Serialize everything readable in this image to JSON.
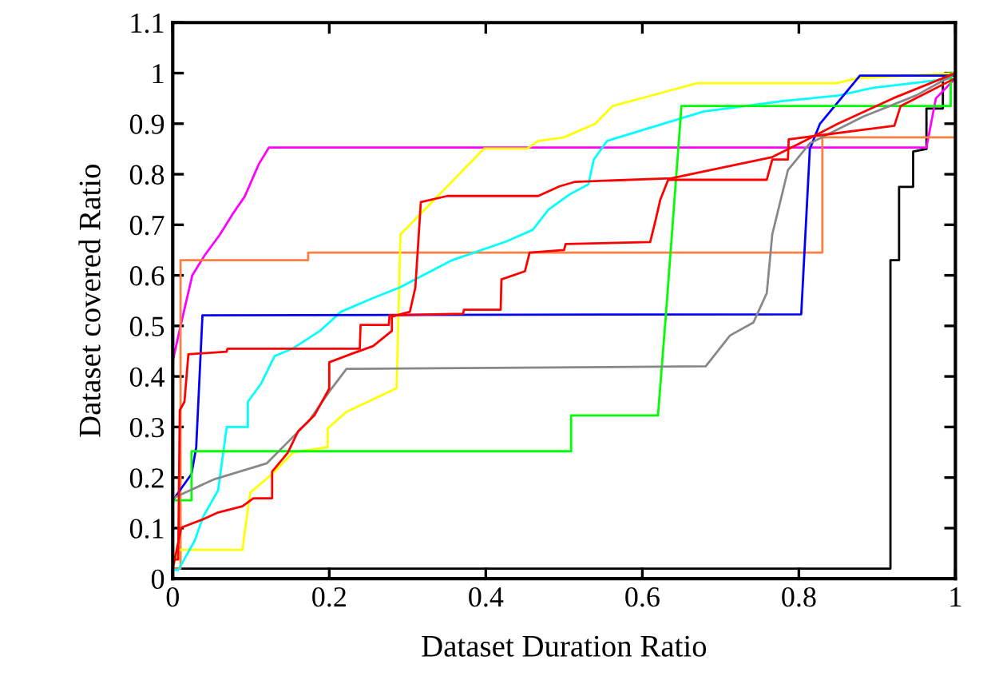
{
  "chart_data": {
    "type": "line",
    "xlabel": "Dataset Duration Ratio",
    "ylabel": "Dataset covered Ratio",
    "xlim": [
      0,
      1
    ],
    "ylim": [
      0,
      1.1
    ],
    "xticks": [
      0,
      0.2,
      0.4,
      0.6,
      0.8,
      1
    ],
    "yticks": [
      0,
      0.1,
      0.2,
      0.3,
      0.4,
      0.5,
      0.6,
      0.7,
      0.8,
      0.9,
      1,
      1.1
    ],
    "grid": false,
    "line_style": "solid",
    "marker": "none",
    "series": [
      {
        "color": "#000000",
        "x": [
          0,
          0.917,
          0.917,
          0.928,
          0.928,
          0.946,
          0.946,
          0.963,
          0.963,
          0.984,
          0.984,
          1
        ],
        "values": [
          0.02,
          0.02,
          0.63,
          0.63,
          0.775,
          0.775,
          0.845,
          0.85,
          0.93,
          0.93,
          0.99,
          1
        ]
      },
      {
        "color": "#ff00ff",
        "x": [
          0,
          0.01,
          0.025,
          0.041,
          0.06,
          0.076,
          0.092,
          0.11,
          0.123,
          0.963,
          0.975,
          1
        ],
        "values": [
          0.43,
          0.5,
          0.6,
          0.64,
          0.68,
          0.72,
          0.756,
          0.82,
          0.853,
          0.853,
          0.95,
          0.99
        ]
      },
      {
        "color": "#ff7f3f",
        "x": [
          0,
          0.01,
          0.01,
          0.173,
          0.173,
          0.83,
          0.83,
          1,
          1
        ],
        "values": [
          0.02,
          0.02,
          0.63,
          0.63,
          0.645,
          0.645,
          0.873,
          0.873,
          1
        ]
      },
      {
        "color": "#ffff00",
        "x": [
          0,
          0.007,
          0.089,
          0.099,
          0.127,
          0.154,
          0.198,
          0.198,
          0.222,
          0.255,
          0.286,
          0.291,
          0.398,
          0.453,
          0.467,
          0.5,
          0.54,
          0.562,
          0.61,
          0.67,
          0.848,
          0.875,
          1
        ],
        "values": [
          0.02,
          0.057,
          0.057,
          0.17,
          0.207,
          0.25,
          0.26,
          0.297,
          0.33,
          0.354,
          0.377,
          0.681,
          0.851,
          0.851,
          0.866,
          0.873,
          0.9,
          0.935,
          0.955,
          0.98,
          0.98,
          0.99,
          1
        ]
      },
      {
        "color": "#00ffff",
        "x": [
          0,
          0.007,
          0.028,
          0.039,
          0.058,
          0.069,
          0.096,
          0.096,
          0.113,
          0.13,
          0.153,
          0.188,
          0.215,
          0.256,
          0.29,
          0.357,
          0.426,
          0.46,
          0.48,
          0.507,
          0.531,
          0.538,
          0.555,
          0.61,
          0.678,
          0.78,
          0.848,
          0.895,
          0.984,
          1
        ],
        "values": [
          0.017,
          0.017,
          0.075,
          0.123,
          0.175,
          0.3,
          0.3,
          0.35,
          0.386,
          0.44,
          0.455,
          0.49,
          0.528,
          0.555,
          0.576,
          0.63,
          0.667,
          0.69,
          0.73,
          0.76,
          0.78,
          0.829,
          0.866,
          0.892,
          0.924,
          0.945,
          0.955,
          0.971,
          0.987,
          0.99
        ]
      },
      {
        "color": "#0000ff",
        "x": [
          0,
          0.024,
          0.03,
          0.038,
          0.803,
          0.814,
          0.827,
          0.878,
          1
        ],
        "values": [
          0.155,
          0.207,
          0.26,
          0.521,
          0.523,
          0.85,
          0.9,
          0.995,
          0.995
        ]
      },
      {
        "color": "#00ff00",
        "x": [
          0,
          0.024,
          0.024,
          0.509,
          0.509,
          0.62,
          0.63,
          0.65,
          0.994,
          0.994
        ],
        "values": [
          0.155,
          0.155,
          0.252,
          0.252,
          0.323,
          0.323,
          0.52,
          0.935,
          0.935,
          1
        ]
      },
      {
        "color": "#888888",
        "x": [
          0,
          0.052,
          0.12,
          0.147,
          0.174,
          0.2,
          0.222,
          0.681,
          0.712,
          0.742,
          0.759,
          0.766,
          0.786,
          0.814,
          0.882,
          0.95,
          0.99,
          1
        ],
        "values": [
          0.159,
          0.196,
          0.228,
          0.27,
          0.312,
          0.37,
          0.415,
          0.42,
          0.481,
          0.507,
          0.565,
          0.681,
          0.808,
          0.861,
          0.914,
          0.956,
          0.99,
          1
        ]
      },
      {
        "color": "#ff0000",
        "x": [
          0,
          0.011,
          0.038,
          0.058,
          0.089,
          0.103,
          0.127,
          0.127,
          0.147,
          0.16,
          0.181,
          0.2,
          0.2,
          0.229,
          0.256,
          0.28,
          0.28,
          0.303,
          0.31,
          0.317,
          0.351,
          0.467,
          0.494,
          0.514,
          0.637,
          0.671,
          0.766,
          0.8,
          0.85,
          0.92,
          1
        ],
        "values": [
          0.02,
          0.101,
          0.117,
          0.131,
          0.143,
          0.159,
          0.159,
          0.212,
          0.249,
          0.291,
          0.323,
          0.376,
          0.428,
          0.445,
          0.46,
          0.49,
          0.518,
          0.528,
          0.576,
          0.745,
          0.757,
          0.757,
          0.776,
          0.785,
          0.792,
          0.803,
          0.834,
          0.86,
          0.9,
          0.95,
          1
        ]
      },
      {
        "color": "#ff0000",
        "x": [
          0,
          0.007,
          0.009,
          0.015,
          0.02,
          0.069,
          0.07,
          0.239,
          0.24,
          0.276,
          0.277,
          0.371,
          0.372,
          0.419,
          0.42,
          0.45,
          0.456,
          0.5,
          0.502,
          0.61,
          0.616,
          0.623,
          0.633,
          0.759,
          0.766,
          0.786,
          0.787,
          0.922,
          0.93,
          1
        ],
        "values": [
          0.038,
          0.038,
          0.333,
          0.35,
          0.444,
          0.449,
          0.455,
          0.455,
          0.502,
          0.502,
          0.521,
          0.524,
          0.532,
          0.532,
          0.592,
          0.608,
          0.645,
          0.65,
          0.662,
          0.666,
          0.703,
          0.75,
          0.789,
          0.789,
          0.829,
          0.829,
          0.869,
          0.896,
          0.935,
          0.99
        ]
      }
    ]
  }
}
